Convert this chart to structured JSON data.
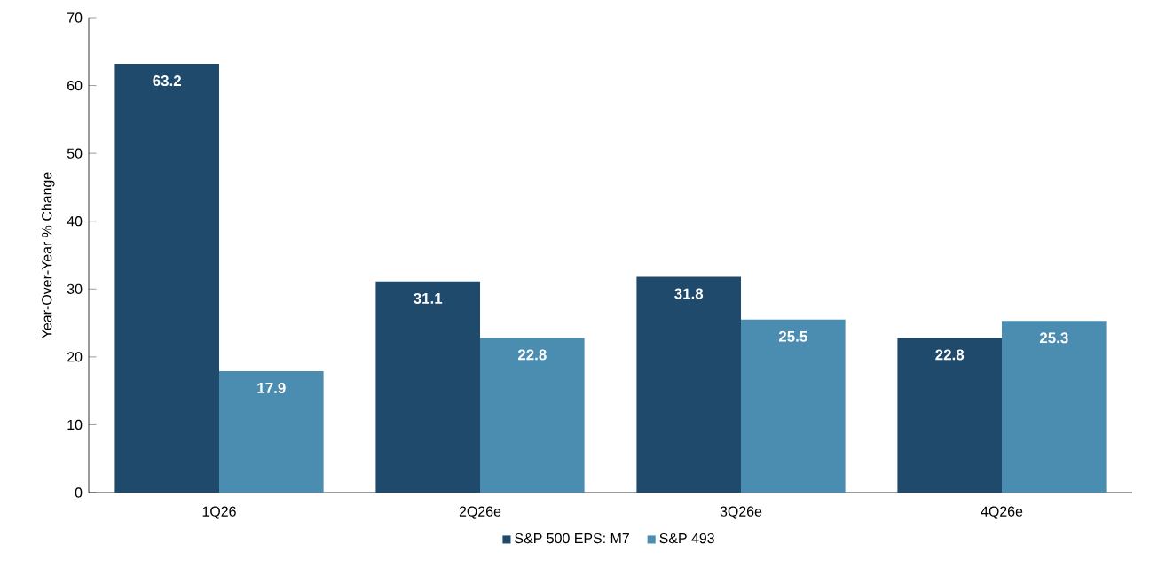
{
  "chart_data": {
    "type": "bar",
    "ylabel": "Year-Over-Year % Change",
    "categories": [
      "1Q26",
      "2Q26e",
      "3Q26e",
      "4Q26e"
    ],
    "series": [
      {
        "name": "S&P 500 EPS: M7",
        "color": "#1f4a6b",
        "values": [
          63.2,
          31.1,
          31.8,
          22.8
        ]
      },
      {
        "name": "S&P 493",
        "color": "#4a8db0",
        "values": [
          17.9,
          22.8,
          25.5,
          25.3
        ]
      }
    ],
    "ylim": [
      0,
      70
    ],
    "yticks": [
      0,
      10,
      20,
      30,
      40,
      50,
      60,
      70
    ],
    "data_labels": true,
    "legend": "bottom",
    "grid": false
  }
}
